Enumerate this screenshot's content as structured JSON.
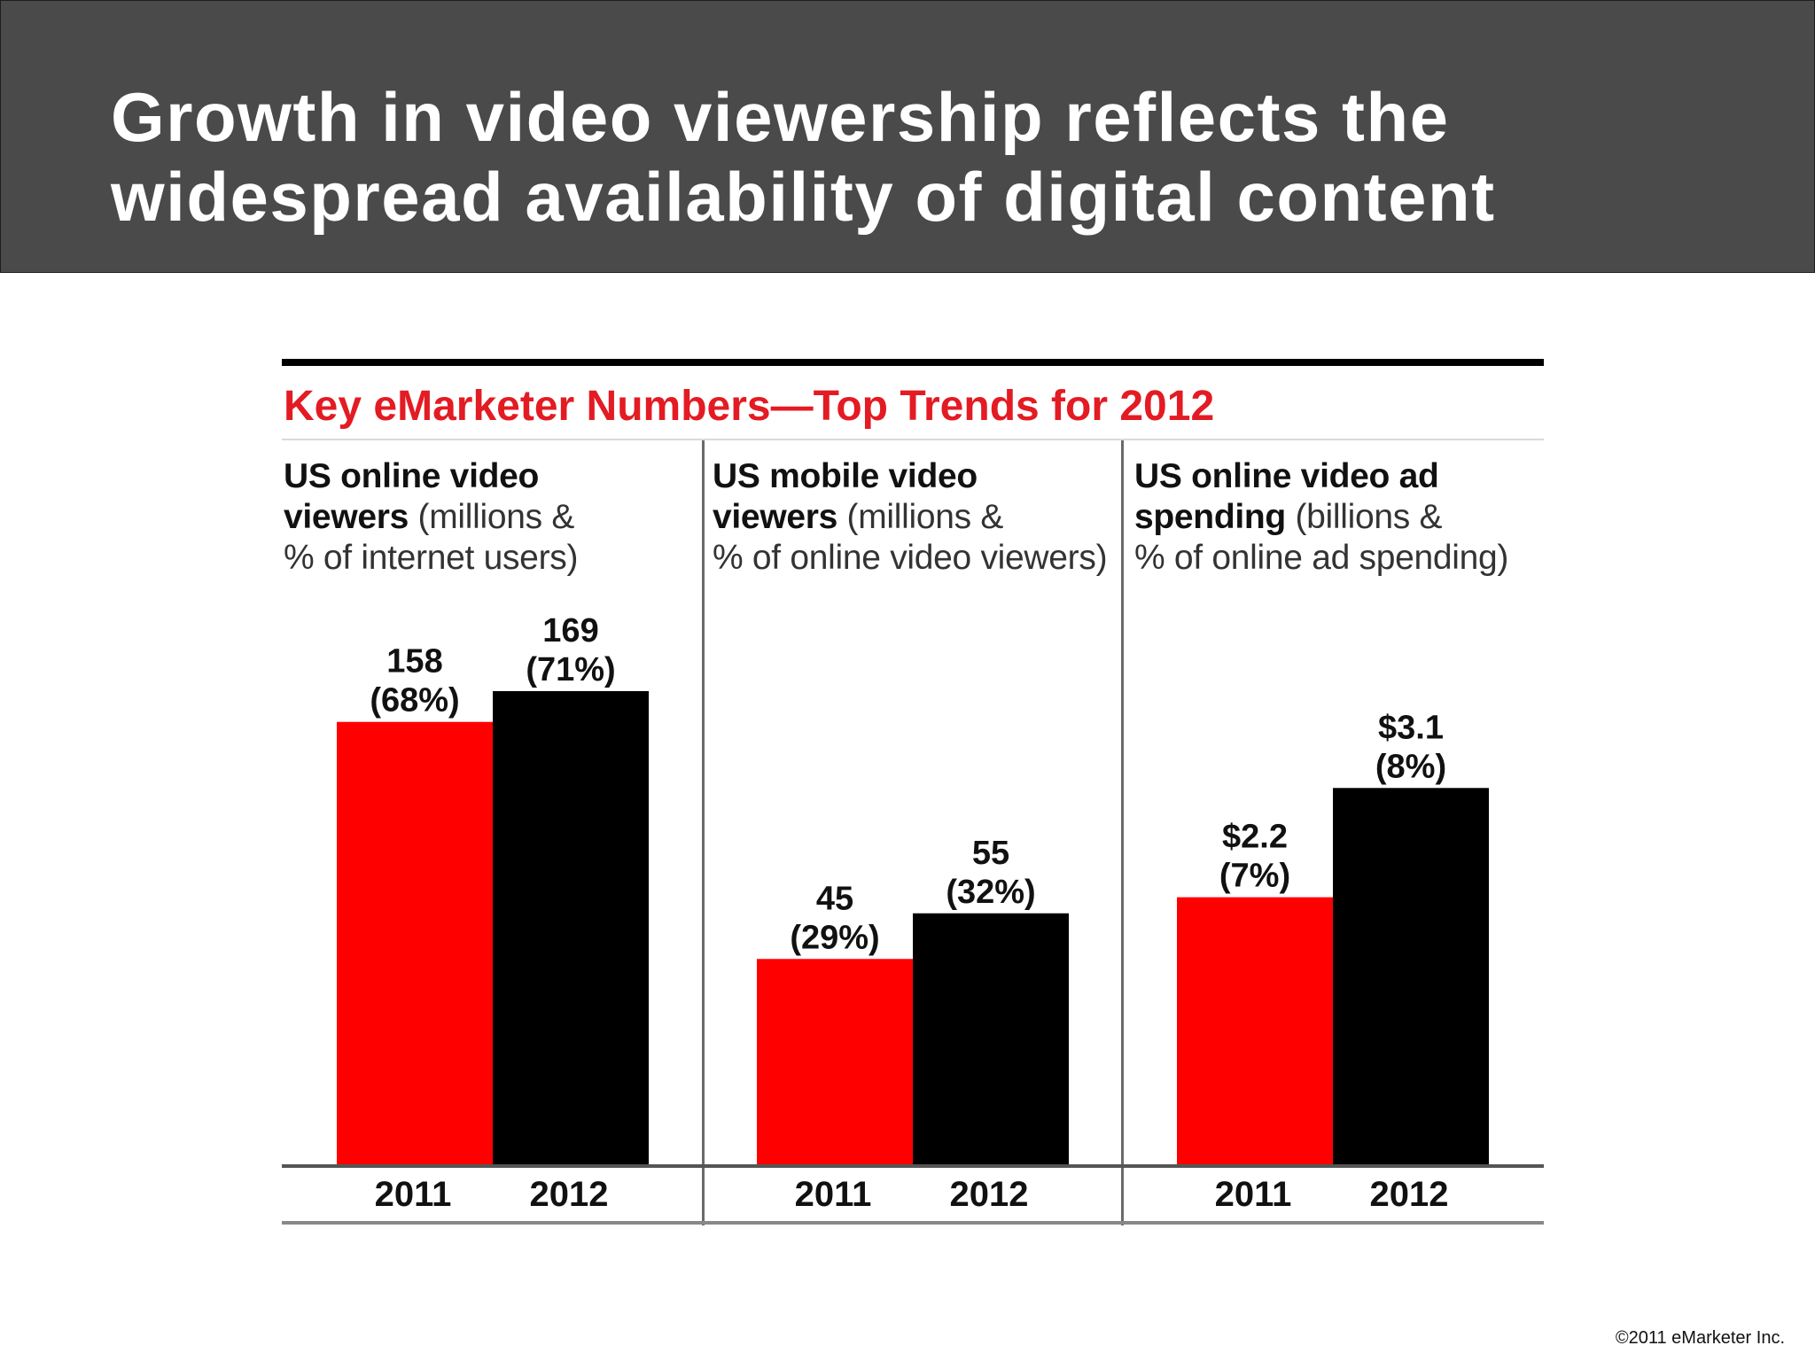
{
  "slide": {
    "title": "Growth in video viewership reflects the\nwidespread availability of digital content",
    "copyright": "©2011 eMarketer Inc."
  },
  "figure": {
    "title": "Key eMarketer Numbers—Top Trends for 2012"
  },
  "colors": {
    "series_2011": "#ff0000",
    "series_2012": "#000000",
    "title_red": "#e31b23",
    "header_bg": "#4a4a4a"
  },
  "chart_data": [
    {
      "type": "bar",
      "title": "US online video viewers",
      "subtitle": "(millions & % of internet users)",
      "categories": [
        "2011",
        "2012"
      ],
      "values": [
        158,
        169
      ],
      "labels": [
        "158",
        "169"
      ],
      "percent_labels": [
        "(68%)",
        "(71%)"
      ],
      "colors": [
        "#ff0000",
        "#000000"
      ]
    },
    {
      "type": "bar",
      "title": "US mobile video viewers",
      "subtitle": "(millions & % of online video viewers)",
      "categories": [
        "2011",
        "2012"
      ],
      "values": [
        45,
        55
      ],
      "labels": [
        "45",
        "55"
      ],
      "percent_labels": [
        "(29%)",
        "(32%)"
      ],
      "colors": [
        "#ff0000",
        "#000000"
      ]
    },
    {
      "type": "bar",
      "title": "US online video ad spending",
      "subtitle": "(billions & % of online ad spending)",
      "categories": [
        "2011",
        "2012"
      ],
      "values": [
        2.2,
        3.1
      ],
      "labels": [
        "$2.2",
        "$3.1"
      ],
      "percent_labels": [
        "(7%)",
        "(8%)"
      ],
      "colors": [
        "#ff0000",
        "#000000"
      ]
    }
  ],
  "panel_heads": [
    {
      "lead1": "US online video",
      "lead2": "viewers",
      "unit1": " (millions &",
      "unit2": "% of internet users)"
    },
    {
      "lead1": "US mobile video",
      "lead2": "viewers",
      "unit1": " (millions &",
      "unit2": "% of online video viewers)"
    },
    {
      "lead1": "US online video ad",
      "lead2": "spending",
      "unit1": " (billions &",
      "unit2": "% of online ad spending)"
    }
  ]
}
